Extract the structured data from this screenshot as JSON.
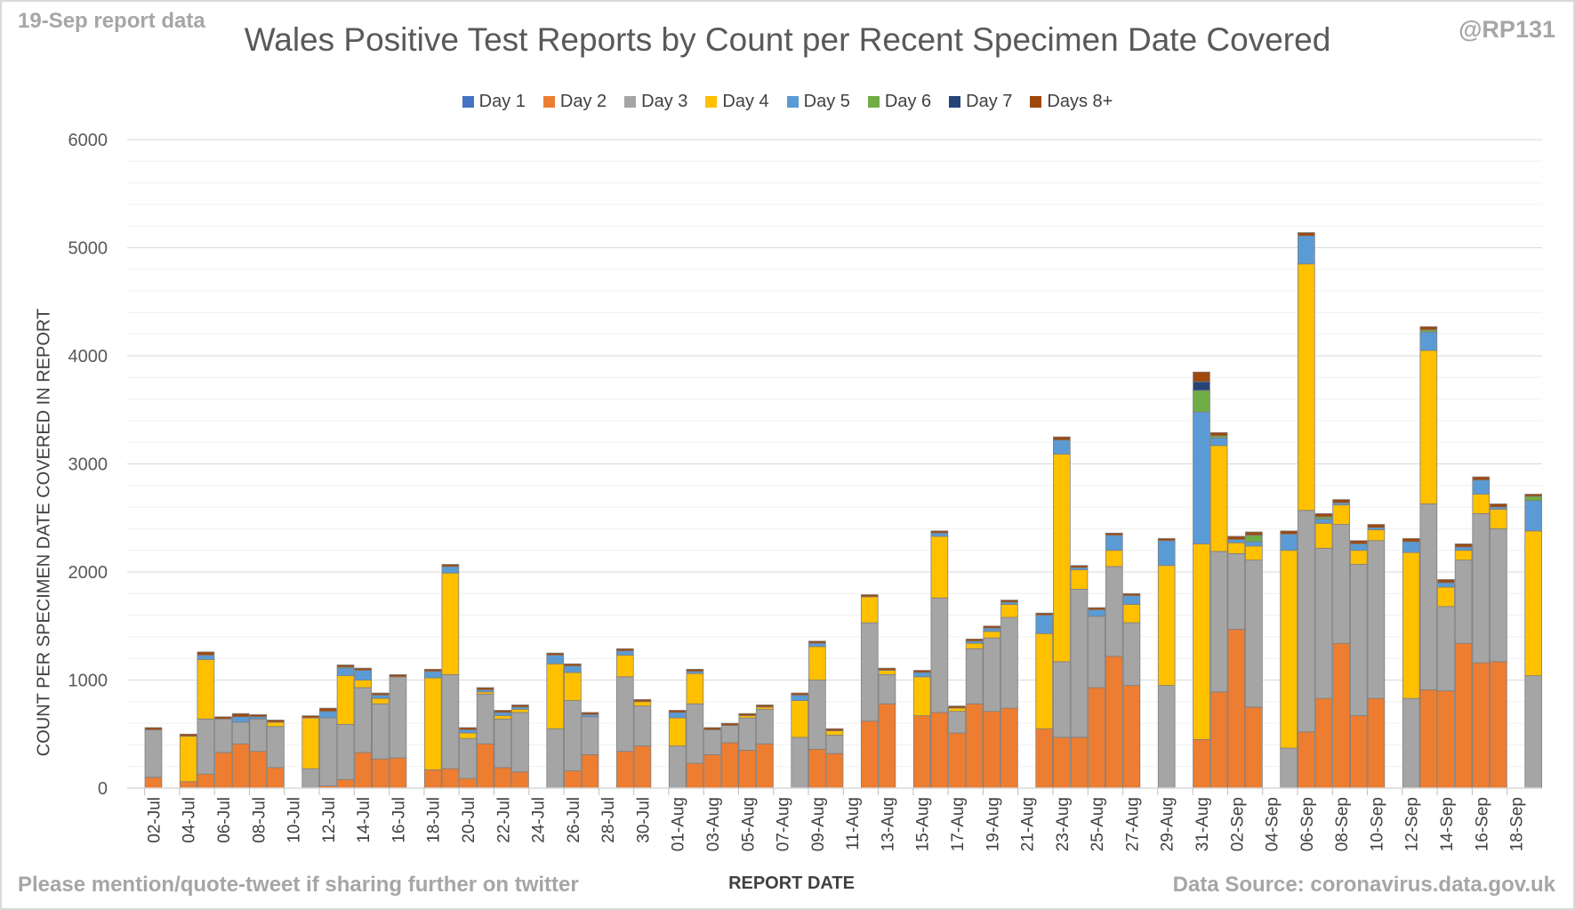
{
  "notes": {
    "report_date": "19-Sep report data",
    "handle": "@RP131",
    "share": "Please mention/quote-tweet if sharing further on twitter",
    "source": "Data Source: coronavirus.data.gov.uk"
  },
  "chart_data": {
    "type": "bar",
    "stacked": true,
    "title": "Wales Positive Test Reports by Count per Recent Specimen Date Covered",
    "xlabel": "REPORT DATE",
    "ylabel": "COUNT PER SPECIMEN DATE COVERED IN REPORT",
    "ylim": [
      0,
      6000
    ],
    "yticks": [
      0,
      1000,
      2000,
      3000,
      4000,
      5000,
      6000
    ],
    "minor_gridlines": true,
    "legend_position": "top",
    "categories": [
      "01-Jul",
      "02-Jul",
      "03-Jul",
      "04-Jul",
      "05-Jul",
      "06-Jul",
      "07-Jul",
      "08-Jul",
      "09-Jul",
      "10-Jul",
      "11-Jul",
      "12-Jul",
      "13-Jul",
      "14-Jul",
      "15-Jul",
      "16-Jul",
      "17-Jul",
      "18-Jul",
      "19-Jul",
      "20-Jul",
      "21-Jul",
      "22-Jul",
      "23-Jul",
      "24-Jul",
      "25-Jul",
      "26-Jul",
      "27-Jul",
      "28-Jul",
      "29-Jul",
      "30-Jul",
      "31-Jul",
      "01-Aug",
      "02-Aug",
      "03-Aug",
      "04-Aug",
      "05-Aug",
      "06-Aug",
      "07-Aug",
      "08-Aug",
      "09-Aug",
      "10-Aug",
      "11-Aug",
      "12-Aug",
      "13-Aug",
      "14-Aug",
      "15-Aug",
      "16-Aug",
      "17-Aug",
      "18-Aug",
      "19-Aug",
      "20-Aug",
      "21-Aug",
      "22-Aug",
      "23-Aug",
      "24-Aug",
      "25-Aug",
      "26-Aug",
      "27-Aug",
      "28-Aug",
      "29-Aug",
      "30-Aug",
      "31-Aug",
      "01-Sep",
      "02-Sep",
      "03-Sep",
      "04-Sep",
      "05-Sep",
      "06-Sep",
      "07-Sep",
      "08-Sep",
      "09-Sep",
      "10-Sep",
      "11-Sep",
      "12-Sep",
      "13-Sep",
      "14-Sep",
      "15-Sep",
      "16-Sep",
      "17-Sep",
      "18-Sep",
      "19-Sep"
    ],
    "tick_labels": [
      "02-Jul",
      "04-Jul",
      "06-Jul",
      "08-Jul",
      "10-Jul",
      "12-Jul",
      "14-Jul",
      "16-Jul",
      "18-Jul",
      "20-Jul",
      "22-Jul",
      "24-Jul",
      "26-Jul",
      "28-Jul",
      "30-Jul",
      "01-Aug",
      "03-Aug",
      "05-Aug",
      "07-Aug",
      "09-Aug",
      "11-Aug",
      "13-Aug",
      "15-Aug",
      "17-Aug",
      "19-Aug",
      "21-Aug",
      "23-Aug",
      "25-Aug",
      "27-Aug",
      "29-Aug",
      "31-Aug",
      "02-Sep",
      "04-Sep",
      "06-Sep",
      "08-Sep",
      "10-Sep",
      "12-Sep",
      "14-Sep",
      "16-Sep",
      "18-Sep"
    ],
    "series": [
      {
        "name": "Day 1",
        "color": "#4472c4",
        "values": [
          0,
          0,
          0,
          0,
          0,
          0,
          0,
          0,
          0,
          0,
          0,
          0,
          0,
          0,
          0,
          0,
          0,
          0,
          0,
          0,
          0,
          0,
          0,
          0,
          0,
          0,
          0,
          0,
          0,
          0,
          0,
          0,
          0,
          0,
          0,
          0,
          0,
          0,
          0,
          0,
          0,
          0,
          0,
          0,
          0,
          0,
          0,
          0,
          0,
          0,
          0,
          0,
          0,
          0,
          0,
          0,
          0,
          0,
          0,
          0,
          0,
          0,
          0,
          0,
          0,
          0,
          0,
          0,
          0,
          0,
          0,
          0,
          0,
          0,
          0,
          0,
          0,
          0,
          0,
          0,
          0
        ]
      },
      {
        "name": "Day 2",
        "color": "#ed7d31",
        "values": [
          0,
          100,
          0,
          60,
          130,
          330,
          410,
          340,
          190,
          0,
          0,
          20,
          80,
          330,
          270,
          280,
          0,
          170,
          180,
          90,
          410,
          190,
          150,
          0,
          0,
          160,
          310,
          0,
          340,
          390,
          0,
          0,
          230,
          310,
          420,
          350,
          410,
          0,
          0,
          360,
          320,
          0,
          620,
          780,
          0,
          670,
          700,
          510,
          780,
          710,
          740,
          0,
          550,
          470,
          470,
          930,
          1220,
          950,
          0,
          0,
          0,
          450,
          890,
          1470,
          750,
          0,
          0,
          520,
          830,
          1340,
          670,
          830,
          0,
          0,
          910,
          900,
          1340,
          1160,
          1170,
          0,
          0
        ]
      },
      {
        "name": "Day 3",
        "color": "#a5a5a5",
        "values": [
          0,
          440,
          0,
          0,
          510,
          310,
          200,
          300,
          380,
          0,
          180,
          630,
          510,
          600,
          510,
          750,
          0,
          0,
          870,
          370,
          460,
          450,
          550,
          0,
          550,
          650,
          350,
          0,
          690,
          370,
          0,
          390,
          550,
          230,
          160,
          300,
          320,
          0,
          470,
          640,
          170,
          0,
          910,
          270,
          0,
          0,
          1060,
          200,
          510,
          680,
          840,
          0,
          0,
          700,
          1370,
          660,
          830,
          580,
          0,
          950,
          0,
          0,
          1300,
          700,
          1360,
          0,
          370,
          2050,
          1390,
          1100,
          1400,
          1460,
          0,
          830,
          1720,
          780,
          770,
          1380,
          1230,
          0,
          1040
        ]
      },
      {
        "name": "Day 4",
        "color": "#ffc000",
        "values": [
          0,
          0,
          0,
          420,
          550,
          0,
          0,
          0,
          40,
          0,
          470,
          0,
          450,
          70,
          50,
          0,
          0,
          850,
          940,
          50,
          20,
          30,
          30,
          0,
          600,
          260,
          0,
          0,
          200,
          40,
          0,
          260,
          280,
          0,
          0,
          20,
          20,
          0,
          340,
          310,
          40,
          0,
          240,
          40,
          0,
          360,
          570,
          30,
          50,
          60,
          120,
          0,
          880,
          1920,
          180,
          0,
          150,
          170,
          0,
          1110,
          0,
          1810,
          980,
          100,
          130,
          0,
          1830,
          2280,
          230,
          180,
          130,
          100,
          0,
          1350,
          1420,
          180,
          90,
          180,
          180,
          0,
          1340
        ]
      },
      {
        "name": "Day 5",
        "color": "#5b9bd5",
        "values": [
          0,
          0,
          0,
          0,
          40,
          0,
          50,
          20,
          0,
          0,
          0,
          60,
          70,
          90,
          30,
          0,
          0,
          60,
          60,
          30,
          20,
          30,
          20,
          0,
          80,
          60,
          20,
          0,
          40,
          0,
          0,
          50,
          20,
          0,
          0,
          0,
          0,
          0,
          50,
          30,
          0,
          0,
          0,
          0,
          0,
          40,
          30,
          0,
          20,
          30,
          20,
          0,
          170,
          130,
          20,
          60,
          140,
          80,
          0,
          230,
          0,
          1220,
          70,
          30,
          40,
          0,
          150,
          260,
          40,
          20,
          60,
          20,
          0,
          100,
          170,
          40,
          30,
          130,
          20,
          0,
          280
        ]
      },
      {
        "name": "Day 6",
        "color": "#70ad47",
        "values": [
          0,
          0,
          0,
          0,
          0,
          0,
          0,
          0,
          0,
          0,
          0,
          0,
          10,
          0,
          0,
          0,
          0,
          0,
          0,
          0,
          0,
          0,
          0,
          0,
          0,
          0,
          0,
          0,
          0,
          0,
          0,
          0,
          0,
          0,
          0,
          0,
          0,
          0,
          0,
          0,
          0,
          0,
          0,
          0,
          0,
          0,
          0,
          0,
          0,
          0,
          0,
          0,
          0,
          0,
          0,
          0,
          0,
          0,
          0,
          0,
          0,
          200,
          20,
          0,
          60,
          0,
          0,
          0,
          20,
          0,
          0,
          0,
          0,
          0,
          20,
          0,
          0,
          0,
          0,
          0,
          40
        ]
      },
      {
        "name": "Day 7",
        "color": "#264478",
        "values": [
          0,
          0,
          0,
          0,
          0,
          0,
          0,
          0,
          0,
          0,
          0,
          0,
          0,
          0,
          0,
          0,
          0,
          0,
          0,
          0,
          0,
          0,
          0,
          0,
          0,
          0,
          0,
          0,
          0,
          0,
          0,
          0,
          0,
          0,
          0,
          0,
          0,
          0,
          0,
          0,
          0,
          0,
          0,
          0,
          0,
          0,
          0,
          0,
          0,
          0,
          0,
          0,
          0,
          0,
          0,
          0,
          0,
          0,
          0,
          0,
          0,
          80,
          0,
          0,
          0,
          0,
          0,
          0,
          0,
          0,
          0,
          0,
          0,
          0,
          0,
          0,
          0,
          0,
          0,
          0,
          0
        ]
      },
      {
        "name": "Days 8+",
        "color": "#9e480e",
        "values": [
          0,
          20,
          0,
          20,
          30,
          20,
          30,
          20,
          20,
          0,
          20,
          30,
          20,
          20,
          20,
          20,
          0,
          20,
          20,
          20,
          20,
          20,
          20,
          0,
          20,
          20,
          20,
          0,
          20,
          20,
          0,
          20,
          20,
          20,
          20,
          20,
          20,
          0,
          20,
          20,
          20,
          0,
          20,
          20,
          0,
          20,
          20,
          20,
          20,
          20,
          20,
          0,
          20,
          30,
          20,
          20,
          20,
          20,
          0,
          20,
          0,
          90,
          30,
          30,
          30,
          0,
          30,
          30,
          30,
          30,
          30,
          30,
          0,
          30,
          30,
          30,
          30,
          30,
          30,
          0,
          20
        ]
      }
    ]
  }
}
